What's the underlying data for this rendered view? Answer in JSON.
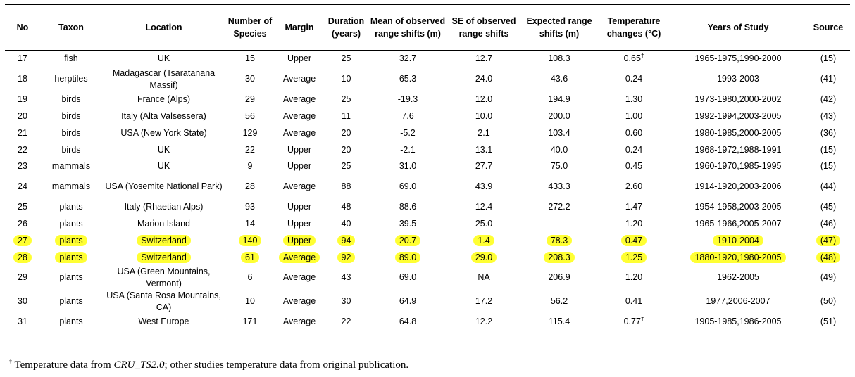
{
  "headers": [
    "No",
    "Taxon",
    "Location",
    "Number of Species",
    "Margin",
    "Duration (years)",
    "Mean of observed range shifts (m)",
    "SE of observed range shifts",
    "Expected range shifts (m)",
    "Temperature changes (°C)",
    "Years of Study",
    "Source"
  ],
  "highlight_color": "#ffff33",
  "rows": [
    {
      "no": "17",
      "taxon": "fish",
      "location": "UK",
      "species": "15",
      "margin": "Upper",
      "duration": "25",
      "mean": "32.7",
      "se": "12.7",
      "expected": "108.3",
      "temp": "0.65",
      "dagger": "†",
      "years": "1965-1975,1990-2000",
      "source": "(15)",
      "tall": false,
      "hl": false
    },
    {
      "no": "18",
      "taxon": "herptiles",
      "location": "Madagascar (Tsaratanana Massif)",
      "species": "30",
      "margin": "Average",
      "duration": "10",
      "mean": "65.3",
      "se": "24.0",
      "expected": "43.6",
      "temp": "0.24",
      "dagger": "",
      "years": "1993-2003",
      "source": "(41)",
      "tall": true,
      "hl": false
    },
    {
      "no": "19",
      "taxon": "birds",
      "location": "France (Alps)",
      "species": "29",
      "margin": "Average",
      "duration": "25",
      "mean": "-19.3",
      "se": "12.0",
      "expected": "194.9",
      "temp": "1.30",
      "dagger": "",
      "years": "1973-1980,2000-2002",
      "source": "(42)",
      "tall": false,
      "hl": false
    },
    {
      "no": "20",
      "taxon": "birds",
      "location": "Italy (Alta Valsessera)",
      "species": "56",
      "margin": "Average",
      "duration": "11",
      "mean": "7.6",
      "se": "10.0",
      "expected": "200.0",
      "temp": "1.00",
      "dagger": "",
      "years": "1992-1994,2003-2005",
      "source": "(43)",
      "tall": false,
      "hl": false
    },
    {
      "no": "21",
      "taxon": "birds",
      "location": "USA (New York State)",
      "species": "129",
      "margin": "Average",
      "duration": "20",
      "mean": "-5.2",
      "se": "2.1",
      "expected": "103.4",
      "temp": "0.60",
      "dagger": "",
      "years": "1980-1985,2000-2005",
      "source": "(36)",
      "tall": false,
      "hl": false
    },
    {
      "no": "22",
      "taxon": "birds",
      "location": "UK",
      "species": "22",
      "margin": "Upper",
      "duration": "20",
      "mean": "-2.1",
      "se": "13.1",
      "expected": "40.0",
      "temp": "0.24",
      "dagger": "",
      "years": "1968-1972,1988-1991",
      "source": "(15)",
      "tall": false,
      "hl": false
    },
    {
      "no": "23",
      "taxon": "mammals",
      "location": "UK",
      "species": "9",
      "margin": "Upper",
      "duration": "25",
      "mean": "31.0",
      "se": "27.7",
      "expected": "75.0",
      "temp": "0.45",
      "dagger": "",
      "years": "1960-1970,1985-1995",
      "source": "(15)",
      "tall": false,
      "hl": false
    },
    {
      "no": "24",
      "taxon": "mammals",
      "location": "USA (Yosemite National Park)",
      "species": "28",
      "margin": "Average",
      "duration": "88",
      "mean": "69.0",
      "se": "43.9",
      "expected": "433.3",
      "temp": "2.60",
      "dagger": "",
      "years": "1914-1920,2003-2006",
      "source": "(44)",
      "tall": true,
      "hl": false
    },
    {
      "no": "25",
      "taxon": "plants",
      "location": "Italy (Rhaetian Alps)",
      "species": "93",
      "margin": "Upper",
      "duration": "48",
      "mean": "88.6",
      "se": "12.4",
      "expected": "272.2",
      "temp": "1.47",
      "dagger": "",
      "years": "1954-1958,2003-2005",
      "source": "(45)",
      "tall": false,
      "hl": false
    },
    {
      "no": "26",
      "taxon": "plants",
      "location": "Marion Island",
      "species": "14",
      "margin": "Upper",
      "duration": "40",
      "mean": "39.5",
      "se": "25.0",
      "expected": "",
      "temp": "1.20",
      "dagger": "",
      "years": "1965-1966,2005-2007",
      "source": "(46)",
      "tall": false,
      "hl": false
    },
    {
      "no": "27",
      "taxon": "plants",
      "location": "Switzerland",
      "species": "140",
      "margin": "Upper",
      "duration": "94",
      "mean": "20.7",
      "se": "1.4",
      "expected": "78.3",
      "temp": "0.47",
      "dagger": "",
      "years": "1910-2004",
      "source": "(47)",
      "tall": false,
      "hl": true
    },
    {
      "no": "28",
      "taxon": "plants",
      "location": "Switzerland",
      "species": "61",
      "margin": "Average",
      "duration": "92",
      "mean": "89.0",
      "se": "29.0",
      "expected": "208.3",
      "temp": "1.25",
      "dagger": "",
      "years": "1880-1920,1980-2005",
      "source": "(48)",
      "tall": false,
      "hl": true
    },
    {
      "no": "29",
      "taxon": "plants",
      "location": "USA (Green Mountains, Vermont)",
      "species": "6",
      "margin": "Average",
      "duration": "43",
      "mean": "69.0",
      "se": "NA",
      "expected": "206.9",
      "temp": "1.20",
      "dagger": "",
      "years": "1962-2005",
      "source": "(49)",
      "tall": true,
      "hl": false
    },
    {
      "no": "30",
      "taxon": "plants",
      "location": "USA (Santa Rosa Mountains, CA)",
      "species": "10",
      "margin": "Average",
      "duration": "30",
      "mean": "64.9",
      "se": "17.2",
      "expected": "56.2",
      "temp": "0.41",
      "dagger": "",
      "years": "1977,2006-2007",
      "source": "(50)",
      "tall": true,
      "hl": false
    },
    {
      "no": "31",
      "taxon": "plants",
      "location": "West Europe",
      "species": "171",
      "margin": "Average",
      "duration": "22",
      "mean": "64.8",
      "se": "12.2",
      "expected": "115.4",
      "temp": "0.77",
      "dagger": "†",
      "years": "1905-1985,1986-2005",
      "source": "(51)",
      "tall": false,
      "hl": false
    }
  ],
  "footnote": {
    "mark": "†",
    "pre": " Temperature data from ",
    "italic": "CRU_TS2.0",
    "post": "; other studies temperature data from original publication."
  }
}
